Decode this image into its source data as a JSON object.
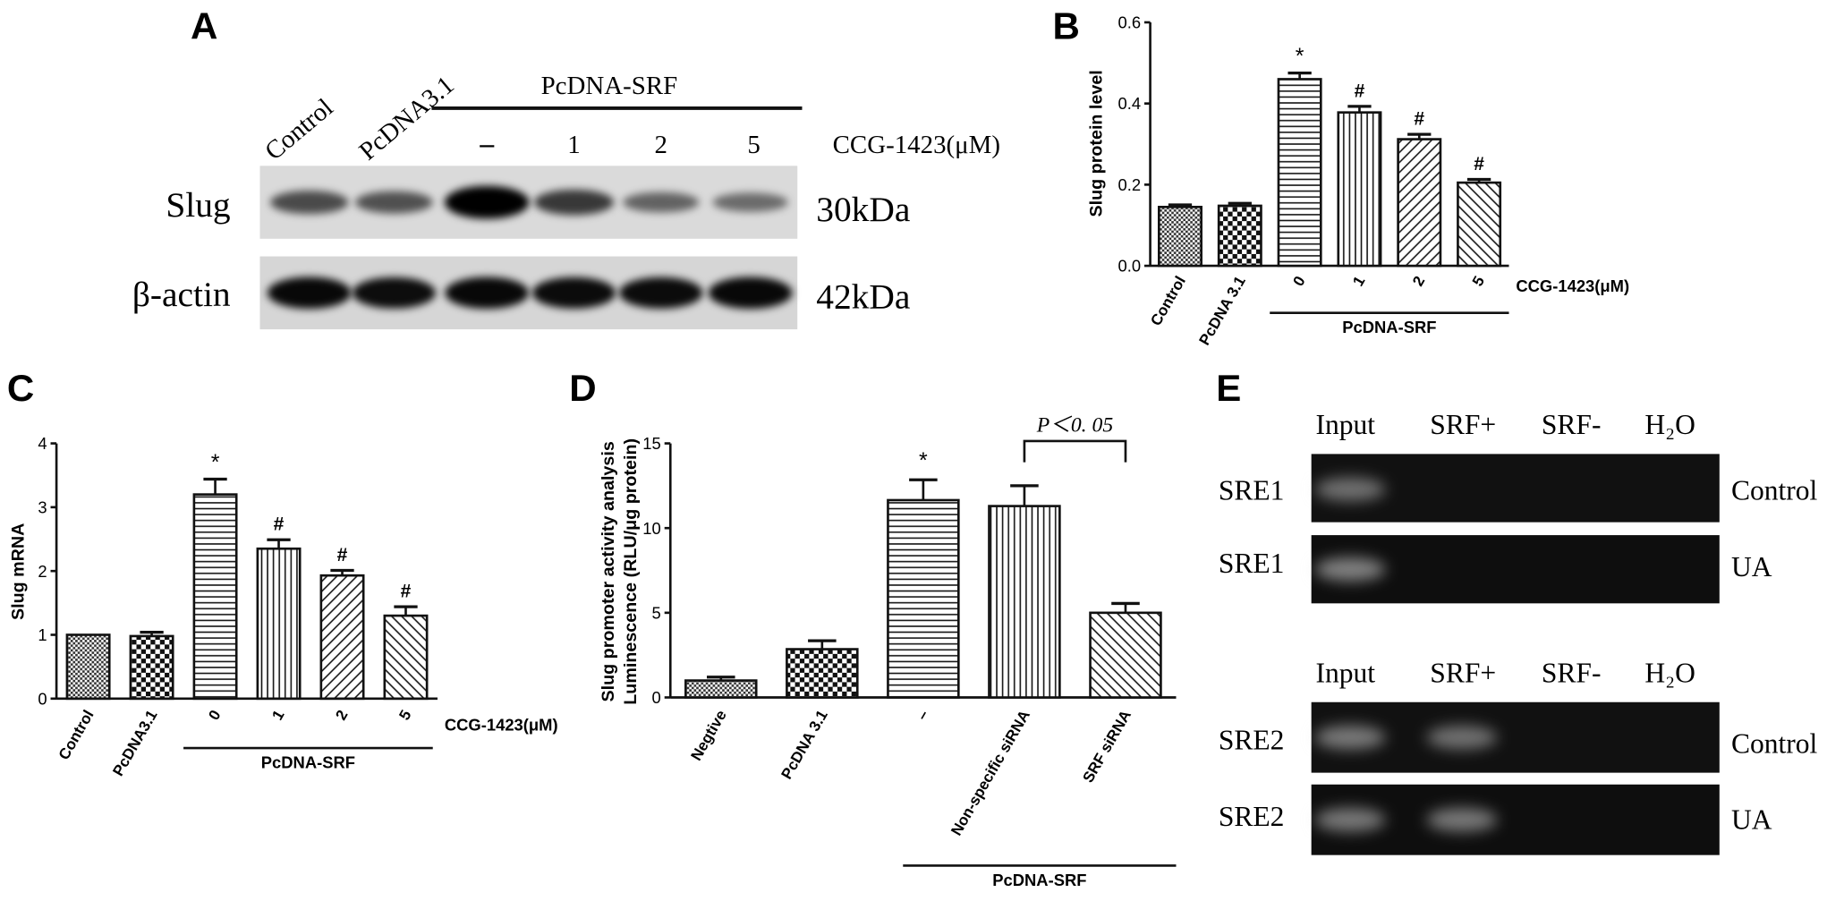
{
  "panelA": {
    "letter": "A",
    "lane_labels": [
      "Control",
      "PcDNA3.1",
      "–",
      "1",
      "2",
      "5"
    ],
    "group_label": "PcDNA-SRF",
    "treatment_label": "CCG-1423(μM)",
    "blots": [
      {
        "name": "Slug",
        "size": "30kDa",
        "band_intensity": [
          0.55,
          0.5,
          1.0,
          0.65,
          0.4,
          0.35
        ]
      },
      {
        "name": "β-actin",
        "size": "42kDa",
        "band_intensity": [
          0.95,
          0.92,
          0.95,
          0.93,
          0.93,
          0.95
        ]
      }
    ]
  },
  "panelE": {
    "letter": "E",
    "column_labels": [
      "Input",
      "SRF+",
      "SRF-",
      "H₂O"
    ],
    "gels": [
      {
        "name": "SRE1",
        "condition": "Control",
        "band_intensity": [
          0.5,
          0,
          0,
          0
        ]
      },
      {
        "name": "SRE1",
        "condition": "UA",
        "band_intensity": [
          0.6,
          0,
          0,
          0
        ]
      },
      {
        "name": "SRE2",
        "condition": "Control",
        "band_intensity": [
          0.55,
          0.5,
          0,
          0
        ]
      },
      {
        "name": "SRE2",
        "condition": "UA",
        "band_intensity": [
          0.55,
          0.55,
          0,
          0
        ]
      }
    ]
  },
  "chart_data": [
    {
      "panel": "B",
      "type": "bar",
      "ylabel": "Slug protein level",
      "ylim": [
        0,
        0.6
      ],
      "yticks": [
        "0.0",
        "0.2",
        "0.4",
        "0.6"
      ],
      "categories": [
        "Control",
        "PcDNA 3.1",
        "0",
        "1",
        "2",
        "5"
      ],
      "values": [
        0.145,
        0.148,
        0.46,
        0.378,
        0.312,
        0.205
      ],
      "errors": [
        0.005,
        0.006,
        0.015,
        0.015,
        0.012,
        0.008
      ],
      "markers": [
        "",
        "",
        "*",
        "#",
        "#",
        "#"
      ],
      "treatment_label": "CCG-1423(μM)",
      "group_label": "PcDNA-SRF",
      "patterns": [
        "dots",
        "checker",
        "hlines",
        "vlines",
        "diag-left",
        "diag-right"
      ]
    },
    {
      "panel": "C",
      "type": "bar",
      "ylabel": "Slug mRNA",
      "ylim": [
        0,
        4
      ],
      "yticks": [
        "0",
        "1",
        "2",
        "3",
        "4"
      ],
      "categories": [
        "Control",
        "PcDNA3.1",
        "0",
        "1",
        "2",
        "5"
      ],
      "values": [
        1.0,
        0.98,
        3.2,
        2.35,
        1.93,
        1.3
      ],
      "errors": [
        0,
        0.06,
        0.24,
        0.14,
        0.08,
        0.14
      ],
      "markers": [
        "",
        "",
        "*",
        "#",
        "#",
        "#"
      ],
      "treatment_label": "CCG-1423(μM)",
      "group_label": "PcDNA-SRF",
      "patterns": [
        "dots",
        "checker",
        "hlines",
        "vlines",
        "diag-left",
        "diag-right"
      ]
    },
    {
      "panel": "D",
      "type": "bar",
      "ylabel": "Slug promoter activity analysis\nLuminescence (RLU/μg protein)",
      "ylim": [
        0,
        15
      ],
      "yticks": [
        "0",
        "5",
        "10",
        "15"
      ],
      "categories": [
        "Negtive",
        "PcDNA 3.1",
        "–",
        "Non-specific siRNA",
        "SRF siRNA"
      ],
      "values": [
        1.0,
        2.85,
        11.65,
        11.3,
        5.0
      ],
      "errors": [
        0.2,
        0.5,
        1.2,
        1.2,
        0.55
      ],
      "markers": [
        "",
        "",
        "*",
        "",
        ""
      ],
      "significance": "P＜0. 05",
      "group_label": "PcDNA-SRF",
      "patterns": [
        "dots",
        "checker",
        "hlines",
        "vlines",
        "diag-right"
      ]
    }
  ]
}
